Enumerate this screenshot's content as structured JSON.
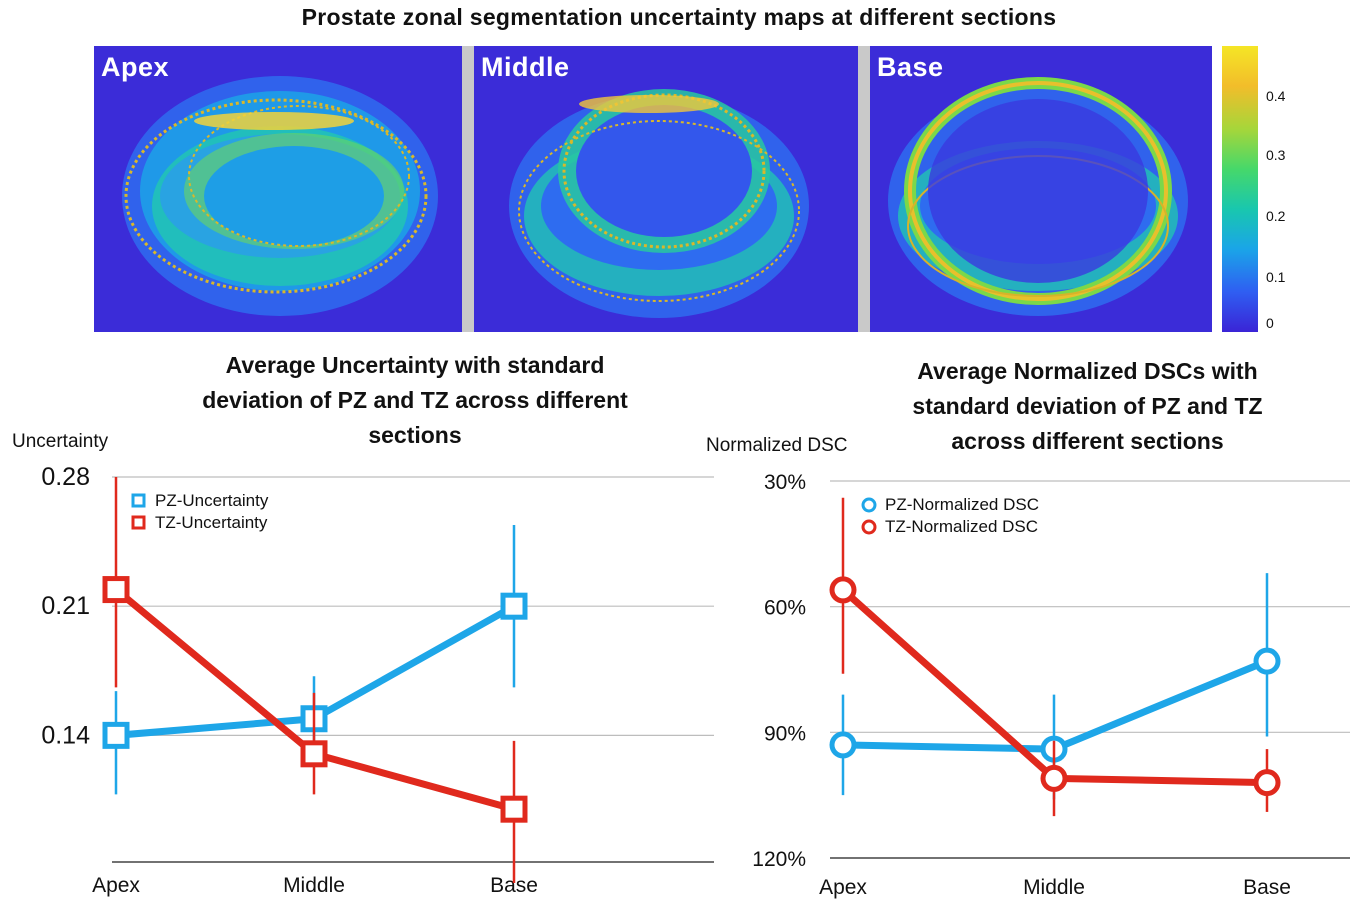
{
  "figure": {
    "title": "Prostate zonal segmentation uncertainty maps at different sections",
    "panels": [
      {
        "label": "Apex"
      },
      {
        "label": "Middle"
      },
      {
        "label": "Base"
      }
    ],
    "colorbar": {
      "ticks": [
        "0.4",
        "0.3",
        "0.2",
        "0.1",
        "0"
      ],
      "colors": [
        "#3a24d6",
        "#2f5ef2",
        "#1aa5e8",
        "#19c7ae",
        "#46d86a",
        "#a6d63a",
        "#f2bd2a",
        "#f5e626"
      ]
    }
  },
  "chart_data": [
    {
      "type": "line",
      "title_lines": [
        "Average Uncertainty with standard",
        "deviation of PZ and TZ across different",
        "sections"
      ],
      "ylabel": "Uncertainty",
      "xlabel": "",
      "categories": [
        "Apex",
        "Middle",
        "Base"
      ],
      "y_ticks": [
        "0.28",
        "0.21",
        "0.14"
      ],
      "ylim": [
        0.06,
        0.28
      ],
      "grid": true,
      "legend_position": "top-left",
      "marker": "square",
      "series": [
        {
          "name": "PZ-Uncertainty",
          "color": "#1ea6e8",
          "values": [
            0.14,
            0.149,
            0.21
          ],
          "err_low": [
            0.108,
            0.13,
            0.166
          ],
          "err_high": [
            0.164,
            0.172,
            0.254
          ]
        },
        {
          "name": "TZ-Uncertainty",
          "color": "#e0291d",
          "values": [
            0.219,
            0.13,
            0.1
          ],
          "err_low": [
            0.166,
            0.108,
            0.06
          ],
          "err_high": [
            0.28,
            0.163,
            0.137
          ]
        }
      ]
    },
    {
      "type": "line",
      "title_lines": [
        "Average Normalized DSCs with",
        "standard deviation of PZ and TZ",
        "across different sections"
      ],
      "ylabel": "Normalized DSC",
      "xlabel": "",
      "categories": [
        "Apex",
        "Middle",
        "Base"
      ],
      "y_ticks": [
        "30%",
        "60%",
        "90%",
        "120%"
      ],
      "ylim": [
        30,
        120
      ],
      "y_inverted": true,
      "grid": true,
      "legend_position": "top-left",
      "marker": "circle",
      "series": [
        {
          "name": "PZ-Normalized DSC",
          "color": "#1ea6e8",
          "values": [
            93,
            94,
            73
          ],
          "err_low": [
            81,
            81,
            52
          ],
          "err_high": [
            105,
            106,
            91
          ]
        },
        {
          "name": "TZ-Normalized DSC",
          "color": "#e0291d",
          "values": [
            56,
            101,
            102
          ],
          "err_low": [
            34,
            92,
            94
          ],
          "err_high": [
            76,
            110,
            109
          ]
        }
      ]
    }
  ]
}
